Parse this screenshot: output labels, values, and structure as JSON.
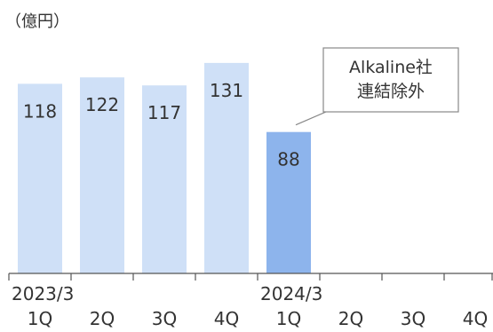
{
  "chart_data": {
    "type": "bar",
    "unit_label": "（億円）",
    "categories": [
      "1Q",
      "2Q",
      "3Q",
      "4Q",
      "1Q",
      "2Q",
      "3Q",
      "4Q"
    ],
    "fiscal_year_labels": [
      {
        "label": "2023/3",
        "index": 0
      },
      {
        "label": "2024/3",
        "index": 4
      }
    ],
    "values": [
      118,
      122,
      117,
      131,
      88,
      null,
      null,
      null
    ],
    "data_labels": [
      "118",
      "122",
      "117",
      "131",
      "88",
      "",
      "",
      ""
    ],
    "highlight_index": 4,
    "ylim": [
      0,
      140
    ],
    "grid": false,
    "legend": "none",
    "annotation": {
      "lines": [
        "Alkaline社",
        "連結除外"
      ],
      "target_index": 4
    },
    "colors": {
      "bar": "#cfe0f7",
      "bar_highlight": "#8db4ec",
      "axis": "#555555",
      "text": "#333333",
      "callout_border": "#888888"
    }
  }
}
